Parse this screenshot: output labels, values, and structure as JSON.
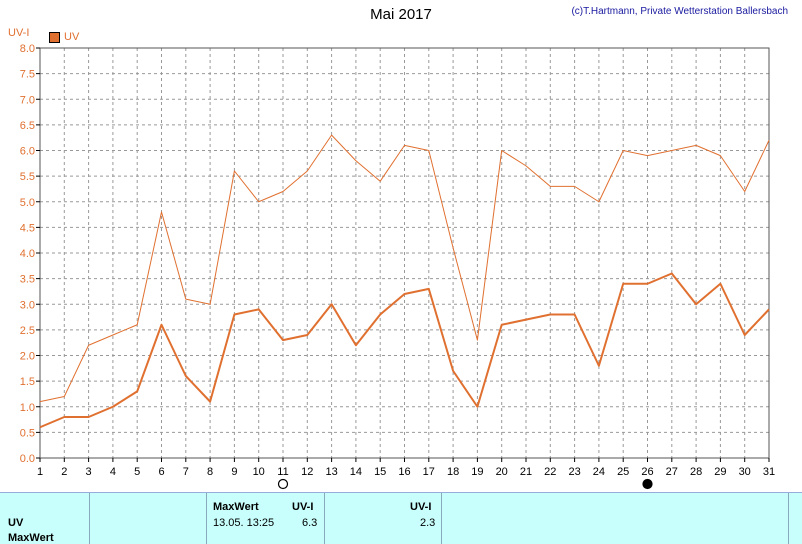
{
  "header": {
    "title": "Mai 2017",
    "credit": "(c)T.Hartmann, Private Wetterstation Ballersbach"
  },
  "colors": {
    "series": "#e07030",
    "grid": "#999999",
    "table_bg": "#c8fffc"
  },
  "chart_data": {
    "type": "line",
    "ylabel": "UV-I",
    "legend": "UV",
    "legend_position": "top-left",
    "grid": true,
    "ylim": [
      0,
      8
    ],
    "yticks": [
      "0.0",
      "0.5",
      "1.0",
      "1.5",
      "2.0",
      "2.5",
      "3.0",
      "3.5",
      "4.0",
      "4.5",
      "5.0",
      "5.5",
      "6.0",
      "6.5",
      "7.0",
      "7.5",
      "8.0"
    ],
    "x": [
      1,
      2,
      3,
      4,
      5,
      6,
      7,
      8,
      9,
      10,
      11,
      12,
      13,
      14,
      15,
      16,
      17,
      18,
      19,
      20,
      21,
      22,
      23,
      24,
      25,
      26,
      27,
      28,
      29,
      30,
      31
    ],
    "series": [
      {
        "role": "max",
        "values": [
          1.1,
          1.2,
          2.2,
          2.4,
          2.6,
          4.8,
          3.1,
          3.0,
          5.6,
          5.0,
          5.2,
          5.6,
          6.3,
          5.8,
          5.4,
          6.1,
          6.0,
          4.1,
          2.3,
          6.0,
          5.7,
          5.3,
          5.3,
          5.0,
          6.0,
          5.9,
          6.0,
          6.1,
          5.9,
          5.2,
          6.2
        ]
      },
      {
        "name": "UV",
        "values": [
          0.6,
          0.8,
          0.8,
          1.0,
          1.3,
          2.6,
          1.6,
          1.1,
          2.8,
          2.9,
          2.3,
          2.4,
          3.0,
          2.2,
          2.8,
          3.2,
          3.3,
          1.7,
          1.0,
          2.6,
          2.7,
          2.8,
          2.8,
          1.8,
          3.4,
          3.4,
          3.6,
          3.0,
          3.4,
          2.4,
          2.9
        ]
      }
    ],
    "markers": [
      {
        "day": 11,
        "symbol": "open-circle"
      },
      {
        "day": 26,
        "symbol": "filled-circle"
      }
    ]
  },
  "table": {
    "row1_label": "UV",
    "row2_label": "MaxWert",
    "col_maxwert": "MaxWert",
    "col_uvi_1": "UV-I",
    "col_uvi_2": "UV-I",
    "max_datetime": "13.05.  13:25",
    "max_value": "6.3",
    "avg_value": "2.3"
  }
}
